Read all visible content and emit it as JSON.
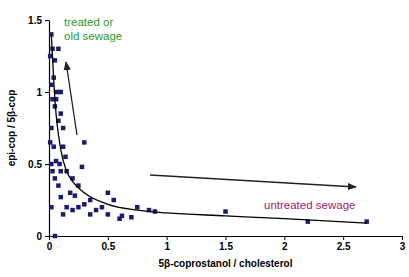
{
  "chart_data": {
    "type": "scatter",
    "x_label": "5β-coprostanol / cholesterol",
    "y_label": "epi-cop / 5β-cop",
    "xlim": [
      0,
      3
    ],
    "ylim": [
      0,
      1.5
    ],
    "xticks": [
      0,
      0.5,
      1,
      1.5,
      2,
      2.5,
      3
    ],
    "yticks": [
      0,
      0.5,
      1,
      1.5
    ],
    "grid": false,
    "annotations": [
      {
        "lines": [
          "treated or",
          "old sewage"
        ]
      },
      {
        "lines": [
          "untreated sewage"
        ]
      }
    ],
    "series": [
      {
        "type": "scatter",
        "marker": "square",
        "color": "#1c1c6e",
        "x": [
          0.02,
          0.01,
          0.03,
          0.05,
          0.08,
          0.04,
          0.02,
          0.07,
          0.1,
          0.06,
          0.03,
          0.05,
          0.1,
          0.08,
          0.12,
          0.02,
          0.01,
          0.04,
          0.12,
          0.14,
          0.06,
          0.09,
          0.02,
          0.03,
          0.1,
          0.15,
          0.05,
          0.08,
          0.2,
          0.25,
          0.3,
          0.28,
          0.18,
          0.22,
          0.2,
          0.15,
          0.25,
          0.3,
          0.35,
          0.4,
          0.45,
          0.5,
          0.55,
          0.5,
          0.6,
          0.62,
          0.7,
          0.75,
          0.85,
          0.9,
          1.5,
          2.2,
          2.7,
          0.1,
          0.05,
          0.12,
          0.35,
          0.02
        ],
        "values": [
          1.4,
          1.25,
          1.3,
          1.22,
          1.3,
          1.1,
          1.05,
          1.0,
          1.0,
          0.95,
          0.95,
          0.9,
          0.85,
          0.8,
          0.75,
          0.75,
          0.65,
          0.62,
          0.62,
          0.55,
          0.52,
          0.5,
          0.5,
          0.45,
          0.45,
          0.45,
          0.4,
          0.35,
          0.4,
          0.35,
          0.65,
          0.48,
          0.3,
          0.28,
          0.18,
          0.2,
          0.2,
          0.22,
          0.25,
          0.18,
          0.2,
          0.3,
          0.25,
          0.15,
          0.12,
          0.14,
          0.13,
          0.2,
          0.18,
          0.17,
          0.17,
          0.1,
          0.1,
          0.27,
          0.0,
          0.15,
          0.15,
          0.2
        ]
      },
      {
        "type": "line",
        "line_style": "solid",
        "color": "#000000",
        "x": [
          0.02,
          0.05,
          0.1,
          0.15,
          0.2,
          0.3,
          0.5,
          0.75,
          1,
          1.5,
          2,
          2.7
        ],
        "values": [
          1.4,
          0.95,
          0.6,
          0.45,
          0.38,
          0.3,
          0.22,
          0.18,
          0.16,
          0.14,
          0.12,
          0.09
        ]
      }
    ]
  }
}
